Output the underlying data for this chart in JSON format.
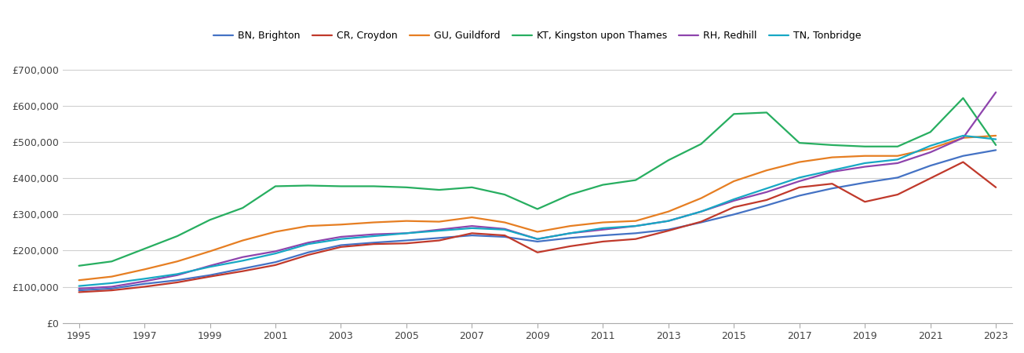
{
  "years": [
    1995,
    1996,
    1997,
    1998,
    1999,
    2000,
    2001,
    2002,
    2003,
    2004,
    2005,
    2006,
    2007,
    2008,
    2009,
    2010,
    2011,
    2012,
    2013,
    2014,
    2015,
    2016,
    2017,
    2018,
    2019,
    2020,
    2021,
    2022,
    2023
  ],
  "BN_Brighton": [
    90000,
    95000,
    108000,
    118000,
    132000,
    150000,
    168000,
    195000,
    215000,
    222000,
    228000,
    235000,
    242000,
    238000,
    225000,
    235000,
    242000,
    248000,
    258000,
    278000,
    300000,
    325000,
    352000,
    372000,
    388000,
    402000,
    435000,
    462000,
    478000
  ],
  "CR_Croydon": [
    85000,
    90000,
    100000,
    112000,
    128000,
    143000,
    160000,
    188000,
    210000,
    218000,
    220000,
    228000,
    248000,
    242000,
    195000,
    212000,
    225000,
    232000,
    255000,
    280000,
    320000,
    340000,
    375000,
    385000,
    335000,
    355000,
    400000,
    445000,
    375000
  ],
  "GU_Guildford": [
    118000,
    128000,
    148000,
    170000,
    198000,
    228000,
    252000,
    268000,
    272000,
    278000,
    282000,
    280000,
    292000,
    278000,
    252000,
    268000,
    278000,
    282000,
    308000,
    345000,
    392000,
    422000,
    445000,
    458000,
    462000,
    462000,
    482000,
    512000,
    518000
  ],
  "KT_Kingston": [
    158000,
    170000,
    205000,
    240000,
    285000,
    318000,
    378000,
    380000,
    378000,
    378000,
    375000,
    368000,
    375000,
    355000,
    315000,
    355000,
    382000,
    395000,
    450000,
    495000,
    578000,
    582000,
    498000,
    492000,
    488000,
    488000,
    528000,
    622000,
    492000
  ],
  "RH_Redhill": [
    95000,
    100000,
    115000,
    132000,
    158000,
    182000,
    198000,
    222000,
    238000,
    245000,
    248000,
    258000,
    268000,
    260000,
    232000,
    248000,
    258000,
    268000,
    282000,
    308000,
    338000,
    362000,
    392000,
    418000,
    432000,
    442000,
    472000,
    512000,
    638000
  ],
  "TN_Tonbridge": [
    102000,
    110000,
    122000,
    135000,
    155000,
    172000,
    192000,
    218000,
    232000,
    240000,
    248000,
    255000,
    262000,
    258000,
    232000,
    248000,
    262000,
    268000,
    282000,
    308000,
    342000,
    372000,
    402000,
    422000,
    442000,
    452000,
    490000,
    518000,
    508000
  ],
  "colors": {
    "BN_Brighton": "#4472c4",
    "CR_Croydon": "#c0392b",
    "GU_Guildford": "#e67e22",
    "KT_Kingston": "#27ae60",
    "RH_Redhill": "#8e44ad",
    "TN_Tonbridge": "#17a8c4"
  },
  "legend_labels": {
    "BN_Brighton": "BN, Brighton",
    "CR_Croydon": "CR, Croydon",
    "GU_Guildford": "GU, Guildford",
    "KT_Kingston": "KT, Kingston upon Thames",
    "RH_Redhill": "RH, Redhill",
    "TN_Tonbridge": "TN, Tonbridge"
  },
  "ylim": [
    0,
    730000
  ],
  "yticks": [
    0,
    100000,
    200000,
    300000,
    400000,
    500000,
    600000,
    700000
  ],
  "ytick_labels": [
    "£0",
    "£100,000",
    "£200,000",
    "£300,000",
    "£400,000",
    "£500,000",
    "£600,000",
    "£700,000"
  ],
  "xticks": [
    1995,
    1997,
    1999,
    2001,
    2003,
    2005,
    2007,
    2009,
    2011,
    2013,
    2015,
    2017,
    2019,
    2021,
    2023
  ],
  "xlim_left": 1994.5,
  "xlim_right": 2023.5,
  "background_color": "#ffffff",
  "grid_color": "#d0d0d0",
  "line_width": 1.6
}
